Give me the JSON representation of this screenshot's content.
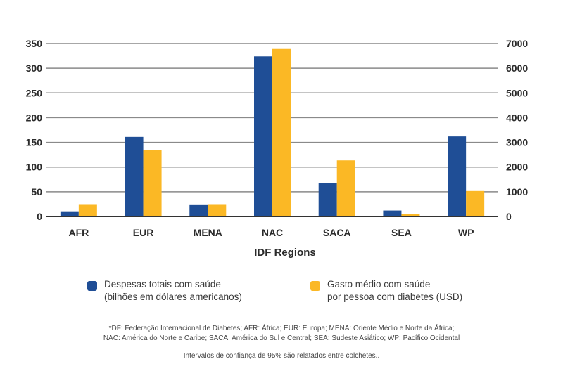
{
  "chart_data": {
    "type": "bar",
    "categories": [
      "AFR",
      "EUR",
      "MENA",
      "NAC",
      "SACA",
      "SEA",
      "WP"
    ],
    "xlabel": "IDF Regions",
    "y_left": {
      "ylim": [
        0,
        350
      ],
      "ticks": [
        "0",
        "50",
        "100",
        "150",
        "200",
        "250",
        "300",
        "350"
      ]
    },
    "y_right": {
      "ylim": [
        0,
        7000
      ],
      "ticks": [
        "0",
        "1000",
        "2000",
        "3000",
        "4000",
        "5000",
        "6000",
        "7000"
      ]
    },
    "grid": true,
    "series": [
      {
        "name_lines": [
          "Despesas totais com saúde",
          "(bilhões em dólares americanos)"
        ],
        "axis": "left",
        "color": "#1f4e96",
        "values": [
          9,
          161,
          23,
          324,
          67,
          12,
          162
        ]
      },
      {
        "name_lines": [
          "Gasto médio com saúde",
          "por pessoa com diabetes (USD)"
        ],
        "axis": "right",
        "color": "#fbb825",
        "values": [
          470,
          2700,
          470,
          6780,
          2270,
          100,
          1030
        ]
      }
    ],
    "legend_position": "bottom"
  },
  "footnote": {
    "lines": [
      "*DF: Federação Internacional de Diabetes; AFR: África; EUR: Europa; MENA: Oriente Médio e Norte da África;",
      "NAC: América do Norte e Caribe; SACA: América do Sul e Central; SEA: Sudeste Asiático; WP: Pacífico Ocidental"
    ],
    "confidence_note": "Intervalos de confiança de 95% são relatados entre colchetes.."
  }
}
